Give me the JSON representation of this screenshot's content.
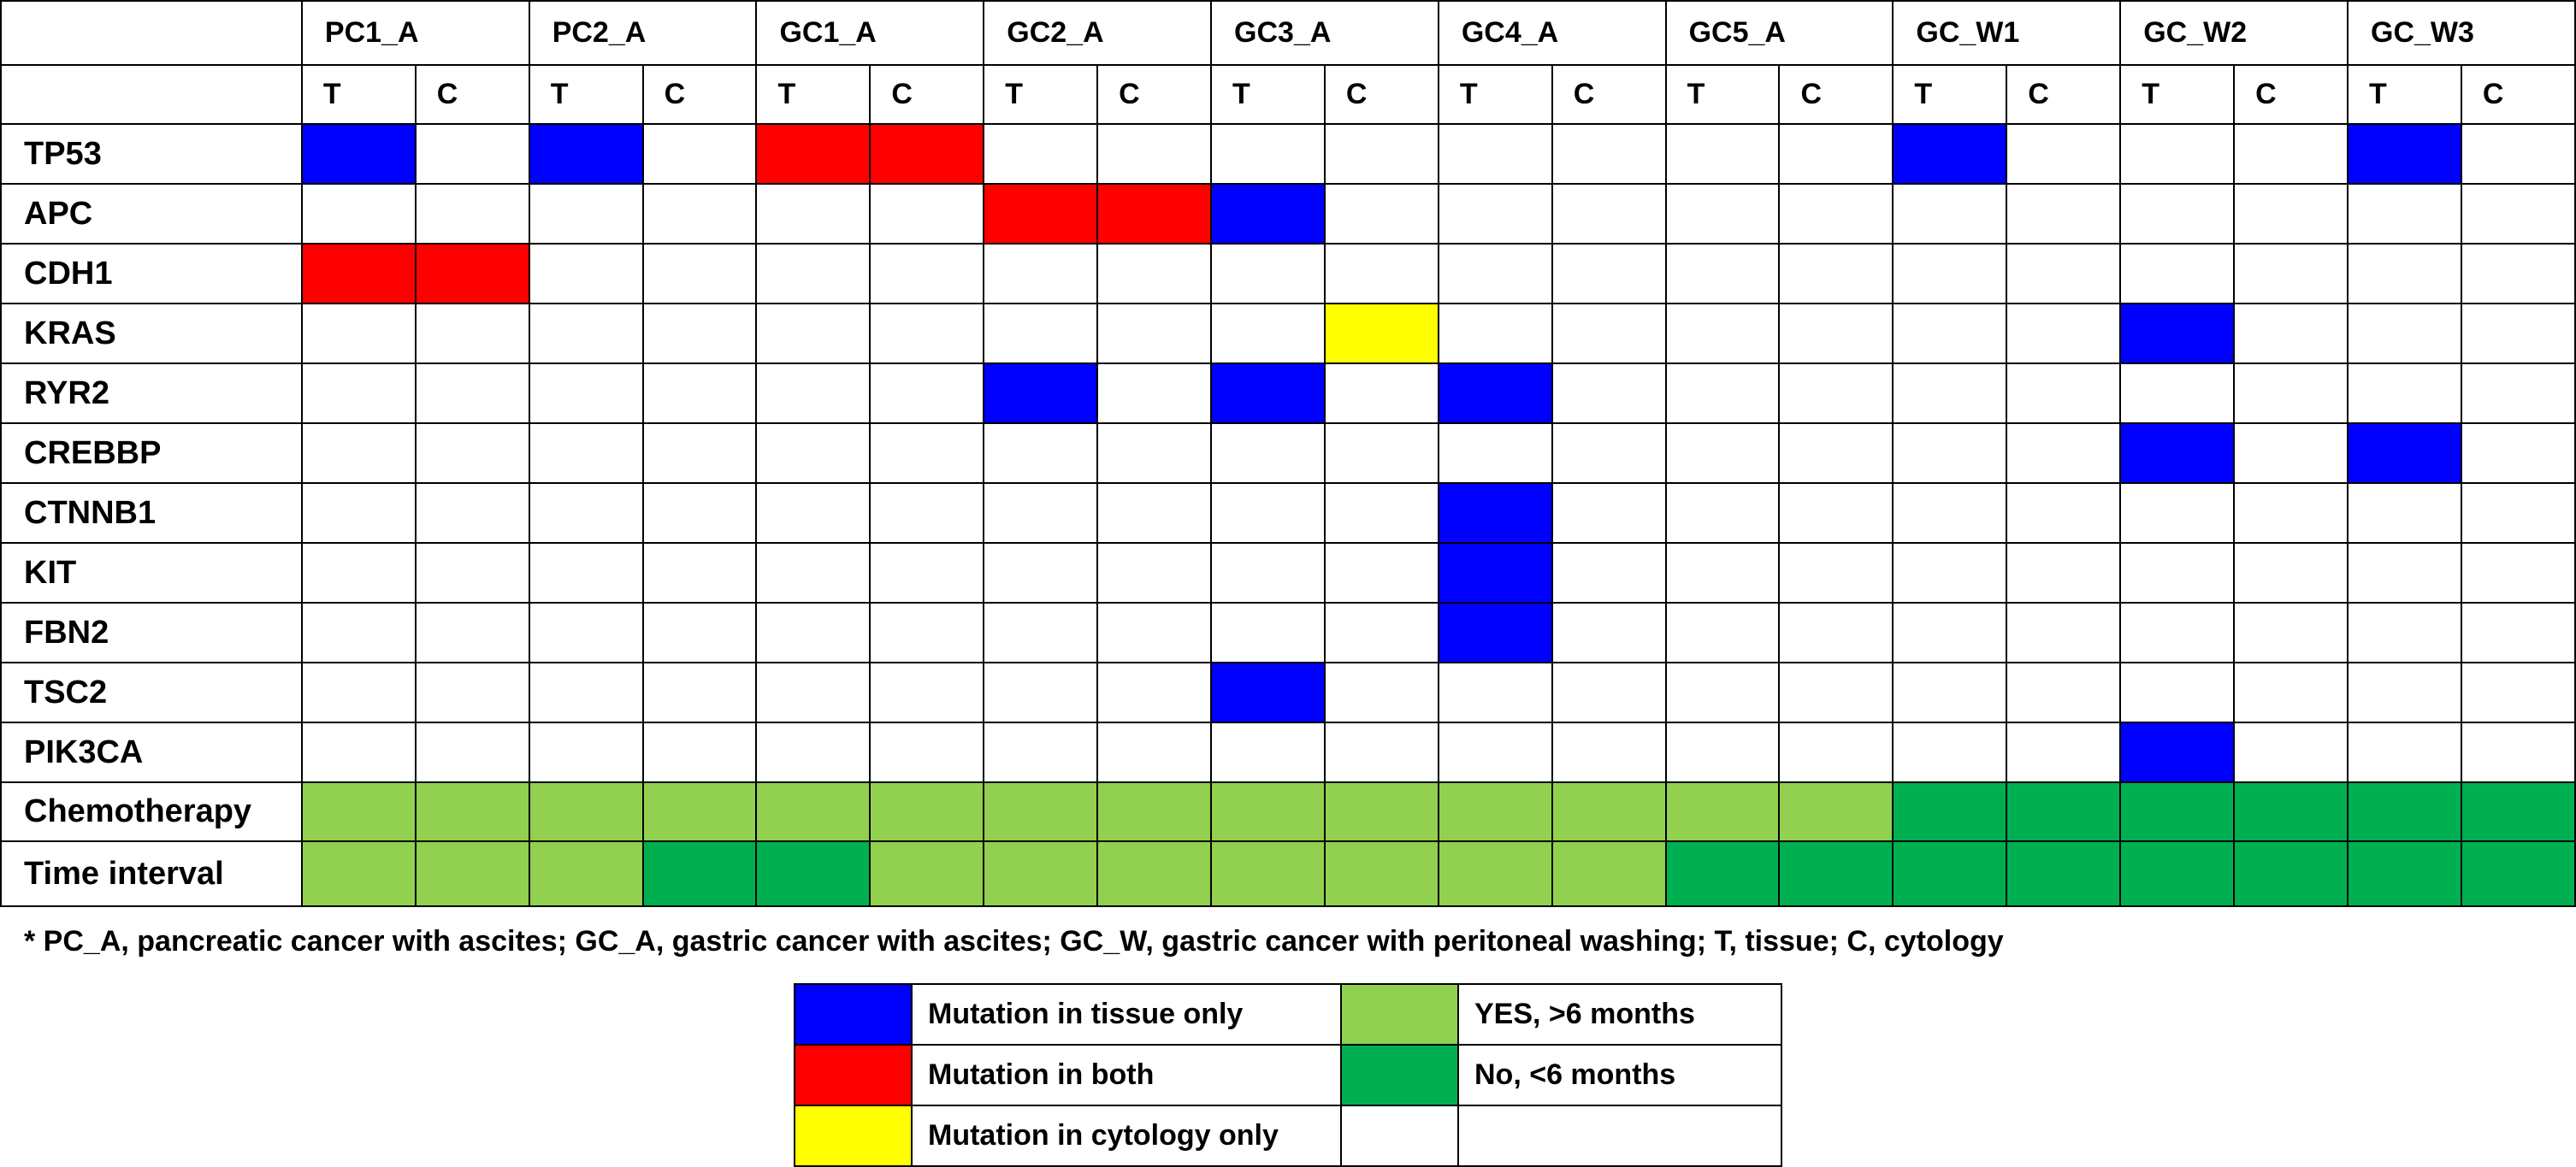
{
  "chart_data": {
    "type": "table",
    "title": "",
    "samples": [
      "PC1_A",
      "PC2_A",
      "GC1_A",
      "GC2_A",
      "GC3_A",
      "GC4_A",
      "GC5_A",
      "GC_W1",
      "GC_W2",
      "GC_W3"
    ],
    "subcolumns": [
      "T",
      "C"
    ],
    "genes": [
      {
        "name": "TP53",
        "cells": [
          "B",
          "",
          "B",
          "",
          "R",
          "R",
          "",
          "",
          "",
          "",
          "",
          "",
          "",
          "",
          "B",
          "",
          "",
          "",
          "B",
          ""
        ]
      },
      {
        "name": "APC",
        "cells": [
          "",
          "",
          "",
          "",
          "",
          "",
          "R",
          "R",
          "B",
          "",
          "",
          "",
          "",
          "",
          "",
          "",
          "",
          "",
          "",
          ""
        ]
      },
      {
        "name": "CDH1",
        "cells": [
          "R",
          "R",
          "",
          "",
          "",
          "",
          "",
          "",
          "",
          "",
          "",
          "",
          "",
          "",
          "",
          "",
          "",
          "",
          "",
          ""
        ]
      },
      {
        "name": "KRAS",
        "cells": [
          "",
          "",
          "",
          "",
          "",
          "",
          "",
          "",
          "",
          "Y",
          "",
          "",
          "",
          "",
          "",
          "",
          "B",
          "",
          "",
          ""
        ]
      },
      {
        "name": "RYR2",
        "cells": [
          "",
          "",
          "",
          "",
          "",
          "",
          "B",
          "",
          "B",
          "",
          "B",
          "",
          "",
          "",
          "",
          "",
          "",
          "",
          "",
          ""
        ]
      },
      {
        "name": "CREBBP",
        "cells": [
          "",
          "",
          "",
          "",
          "",
          "",
          "",
          "",
          "",
          "",
          "",
          "",
          "",
          "",
          "",
          "",
          "B",
          "",
          "B",
          ""
        ]
      },
      {
        "name": "CTNNB1",
        "cells": [
          "",
          "",
          "",
          "",
          "",
          "",
          "",
          "",
          "",
          "",
          "B",
          "",
          "",
          "",
          "",
          "",
          "",
          "",
          "",
          ""
        ]
      },
      {
        "name": "KIT",
        "cells": [
          "",
          "",
          "",
          "",
          "",
          "",
          "",
          "",
          "",
          "",
          "B",
          "",
          "",
          "",
          "",
          "",
          "",
          "",
          "",
          ""
        ]
      },
      {
        "name": "FBN2",
        "cells": [
          "",
          "",
          "",
          "",
          "",
          "",
          "",
          "",
          "",
          "",
          "B",
          "",
          "",
          "",
          "",
          "",
          "",
          "",
          "",
          ""
        ]
      },
      {
        "name": "TSC2",
        "cells": [
          "",
          "",
          "",
          "",
          "",
          "",
          "",
          "",
          "B",
          "",
          "",
          "",
          "",
          "",
          "",
          "",
          "",
          "",
          "",
          ""
        ]
      },
      {
        "name": "PIK3CA",
        "cells": [
          "",
          "",
          "",
          "",
          "",
          "",
          "",
          "",
          "",
          "",
          "",
          "",
          "",
          "",
          "",
          "",
          "B",
          "",
          "",
          ""
        ]
      }
    ],
    "clinical_rows": [
      {
        "name": "Chemotherapy",
        "cells": [
          "LG",
          "LG",
          "LG",
          "LG",
          "LG",
          "LG",
          "LG",
          "LG",
          "LG",
          "LG",
          "LG",
          "LG",
          "LG",
          "LG",
          "DG",
          "DG",
          "DG",
          "DG",
          "DG",
          "DG"
        ]
      },
      {
        "name": "Time interval",
        "cells": [
          "LG",
          "LG",
          "LG",
          "DG",
          "DG",
          "LG",
          "LG",
          "LG",
          "LG",
          "LG",
          "LG",
          "LG",
          "DG",
          "DG",
          "DG",
          "DG",
          "DG",
          "DG",
          "DG",
          "DG"
        ]
      }
    ],
    "colors": {
      "B": "#0000ff",
      "R": "#ff0000",
      "Y": "#ffff00",
      "LG": "#92d050",
      "DG": "#00b050"
    },
    "legend": [
      {
        "key": "B",
        "label": "Mutation in tissue only"
      },
      {
        "key": "R",
        "label": "Mutation in both"
      },
      {
        "key": "Y",
        "label": "Mutation in cytology only"
      },
      {
        "key": "LG",
        "label": "YES, >6 months"
      },
      {
        "key": "DG",
        "label": "No, <6 months"
      }
    ],
    "footnote": "* PC_A, pancreatic cancer with ascites; GC_A, gastric cancer with ascites; GC_W, gastric cancer with peritoneal washing; T, tissue; C, cytology"
  }
}
